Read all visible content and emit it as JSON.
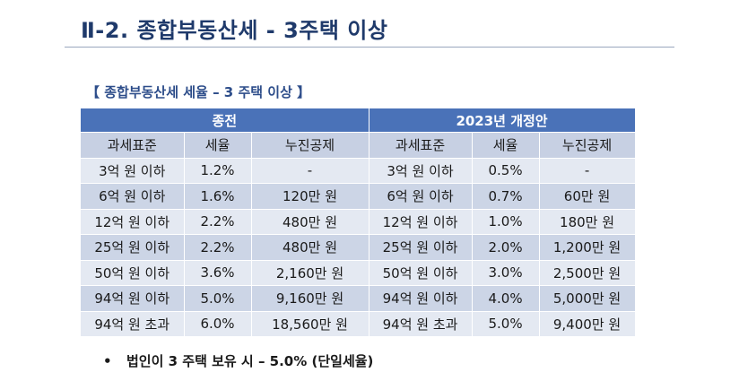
{
  "title": "Ⅱ-2. 종합부동산세 - 3주택 이상",
  "subtitle": "【 종합부동산세 세율 – 3 주택 이상 】",
  "table": {
    "groups": [
      "종전",
      "2023년 개정안"
    ],
    "columns": [
      "과세표준",
      "세율",
      "누진공제",
      "과세표준",
      "세율",
      "누진공제"
    ],
    "rows": [
      [
        "3억 원 이하",
        "1.2%",
        "-",
        "3억 원 이하",
        "0.5%",
        "-"
      ],
      [
        "6억 원 이하",
        "1.6%",
        "120만 원",
        "6억 원 이하",
        "0.7%",
        "60만 원"
      ],
      [
        "12억 원 이하",
        "2.2%",
        "480만 원",
        "12억 원 이하",
        "1.0%",
        "180만 원"
      ],
      [
        "25억 원 이하",
        "2.2%",
        "480만 원",
        "25억 원 이하",
        "2.0%",
        "1,200만 원"
      ],
      [
        "50억 원 이하",
        "3.6%",
        "2,160만 원",
        "50억 원 이하",
        "3.0%",
        "2,500만 원"
      ],
      [
        "94억 원 이하",
        "5.0%",
        "9,160만 원",
        "94억 원 이하",
        "4.0%",
        "5,000만 원"
      ],
      [
        "94억 원 초과",
        "6.0%",
        "18,560만 원",
        "94억 원 초과",
        "5.0%",
        "9,400만 원"
      ]
    ]
  },
  "note": {
    "bullet": "•",
    "text": "법인이 3 주택 보유 시 – 5.0% (단일세율)"
  },
  "colors": {
    "title": "#1f3a6b",
    "header_band": "#4a72b8",
    "subheader": "#c7d0e3",
    "row_light": "#e4e9f2",
    "row_dark": "#ccd5e6"
  }
}
